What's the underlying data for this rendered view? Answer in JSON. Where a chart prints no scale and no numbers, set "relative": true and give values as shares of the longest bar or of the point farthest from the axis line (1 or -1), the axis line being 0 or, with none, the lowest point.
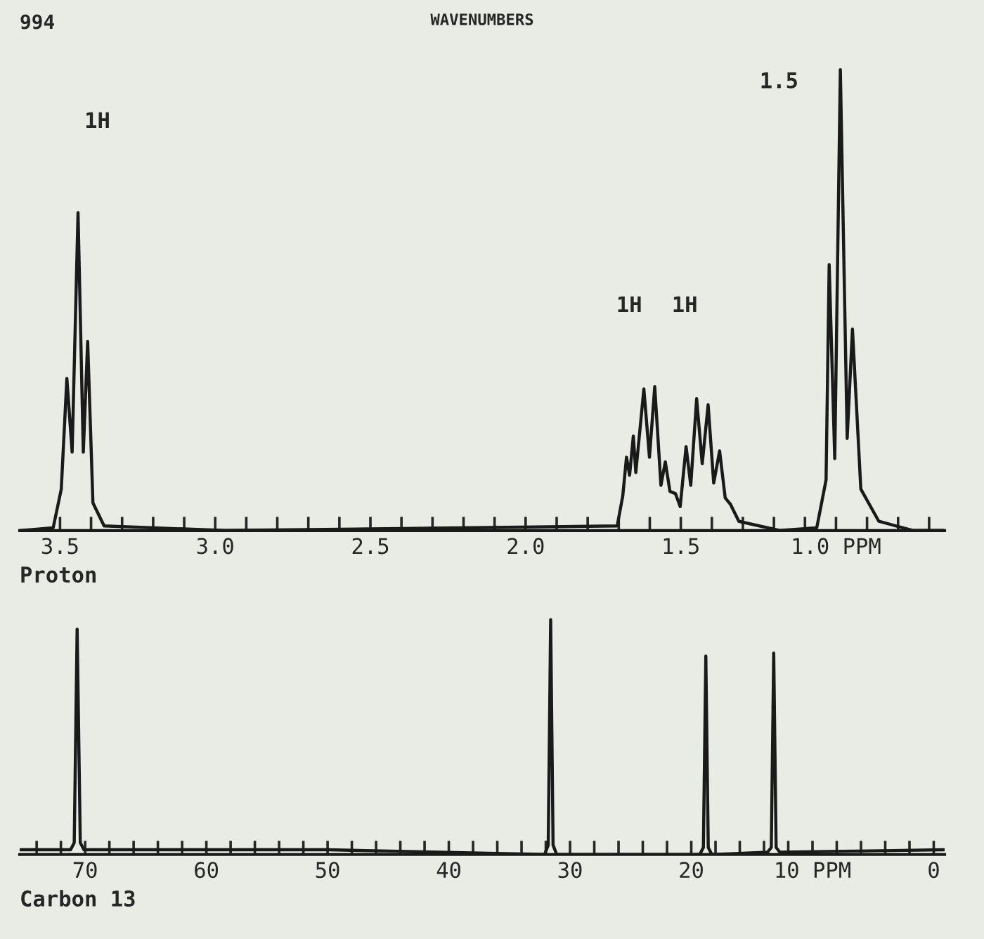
{
  "chart_data": [
    {
      "type": "line",
      "title": "WAVENUMBERS",
      "xlabel": "Proton",
      "relative": true,
      "tick_labels": "x",
      "grid": false,
      "legend": false,
      "marker": "none",
      "line_style": "solid",
      "xlim": [
        3.63,
        0.65
      ],
      "xticks": [
        3.5,
        {
          "value": 3.4,
          "label": null
        },
        {
          "value": 3.3,
          "label": null
        },
        {
          "value": 3.2,
          "label": null
        },
        {
          "value": 3.1,
          "label": null
        },
        {
          "value": 3.0,
          "label": "3.0"
        },
        {
          "value": 2.9,
          "label": null
        },
        {
          "value": 2.8,
          "label": null
        },
        {
          "value": 2.7,
          "label": null
        },
        {
          "value": 2.6,
          "label": null
        },
        2.5,
        {
          "value": 2.4,
          "label": null
        },
        {
          "value": 2.3,
          "label": null
        },
        {
          "value": 2.2,
          "label": null
        },
        {
          "value": 2.1,
          "label": null
        },
        {
          "value": 2.0,
          "label": "2.0"
        },
        {
          "value": 1.9,
          "label": null
        },
        {
          "value": 1.8,
          "label": null
        },
        {
          "value": 1.7,
          "label": null
        },
        {
          "value": 1.6,
          "label": null
        },
        1.5,
        {
          "value": 1.4,
          "label": null
        },
        {
          "value": 1.3,
          "label": null
        },
        {
          "value": 1.2,
          "label": null
        },
        {
          "value": 1.1,
          "label": null
        },
        {
          "value": 1.0,
          "label": "1.0 PPM"
        },
        {
          "value": 0.9,
          "label": null
        },
        {
          "value": 0.8,
          "label": null
        },
        {
          "value": 0.7,
          "label": null
        }
      ],
      "annotations": [
        "994",
        "1H",
        "1H",
        "1H",
        "1.5"
      ],
      "series": [
        {
          "color": "#1a1a1a",
          "x": [
            3.63,
            3.522,
            3.496,
            3.478,
            3.461,
            3.442,
            3.425,
            3.411,
            3.394,
            3.358,
            2.968,
            2.303,
            1.705,
            1.687,
            1.675,
            1.665,
            1.653,
            1.645,
            1.619,
            1.601,
            1.584,
            1.564,
            1.55,
            1.535,
            1.517,
            1.502,
            1.483,
            1.468,
            1.449,
            1.431,
            1.412,
            1.394,
            1.375,
            1.357,
            1.34,
            1.313,
            1.18,
            1.062,
            1.032,
            1.022,
            1.004,
            0.986,
            0.964,
            0.947,
            0.92,
            0.862,
            0.751,
            0.654
          ],
          "values": [
            0,
            0.006,
            0.09,
            0.33,
            0.17,
            0.69,
            0.17,
            0.41,
            0.06,
            0.01,
            0,
            0.005,
            0.01,
            0.075,
            0.159,
            0.12,
            0.205,
            0.126,
            0.307,
            0.159,
            0.312,
            0.098,
            0.149,
            0.085,
            0.08,
            0.052,
            0.182,
            0.098,
            0.286,
            0.145,
            0.273,
            0.103,
            0.173,
            0.071,
            0.057,
            0.02,
            0,
            0.006,
            0.11,
            0.577,
            0.156,
            1.0,
            0.2,
            0.437,
            0.09,
            0.02,
            0,
            0
          ]
        }
      ]
    },
    {
      "type": "line",
      "xlabel": "Carbon 13",
      "relative": true,
      "tick_labels": "x",
      "grid": false,
      "legend": false,
      "marker": "none",
      "line_style": "solid",
      "xlim": [
        75.4,
        -0.9
      ],
      "xticks": [
        {
          "value": 74,
          "label": null
        },
        {
          "value": 72,
          "label": null
        },
        70,
        {
          "value": 68,
          "label": null
        },
        {
          "value": 66,
          "label": null
        },
        {
          "value": 64,
          "label": null
        },
        {
          "value": 62,
          "label": null
        },
        60,
        {
          "value": 58,
          "label": null
        },
        {
          "value": 56,
          "label": null
        },
        {
          "value": 54,
          "label": null
        },
        {
          "value": 52,
          "label": null
        },
        50,
        {
          "value": 48,
          "label": null
        },
        {
          "value": 46,
          "label": null
        },
        {
          "value": 44,
          "label": null
        },
        {
          "value": 42,
          "label": null
        },
        40,
        {
          "value": 38,
          "label": null
        },
        {
          "value": 36,
          "label": null
        },
        {
          "value": 34,
          "label": null
        },
        {
          "value": 32,
          "label": null
        },
        30,
        {
          "value": 28,
          "label": null
        },
        {
          "value": 26,
          "label": null
        },
        {
          "value": 24,
          "label": null
        },
        {
          "value": 22,
          "label": null
        },
        20,
        {
          "value": 18,
          "label": null
        },
        {
          "value": 16,
          "label": null
        },
        {
          "value": 14,
          "label": null
        },
        {
          "value": 12,
          "label": null
        },
        {
          "value": 10,
          "label": "10 PPM"
        },
        {
          "value": 8,
          "label": null
        },
        {
          "value": 6,
          "label": null
        },
        {
          "value": 4,
          "label": null
        },
        {
          "value": 2,
          "label": null
        },
        0
      ],
      "series": [
        {
          "color": "#1a1a1a",
          "x": [
            75.4,
            71.2,
            70.9,
            70.66,
            70.4,
            70.1,
            50,
            32.1,
            31.8,
            31.6,
            31.4,
            31.1,
            19.3,
            19.0,
            18.8,
            18.6,
            18.3,
            13.7,
            13.4,
            13.2,
            13.0,
            12.7,
            -0.9
          ],
          "values": [
            0.02,
            0.02,
            0.05,
            0.96,
            0.05,
            0.02,
            0.02,
            0.0,
            0.04,
            1.0,
            0.04,
            0.0,
            0.0,
            0.03,
            0.845,
            0.03,
            0.0,
            0.01,
            0.03,
            0.858,
            0.03,
            0.01,
            0.02
          ]
        }
      ]
    }
  ]
}
